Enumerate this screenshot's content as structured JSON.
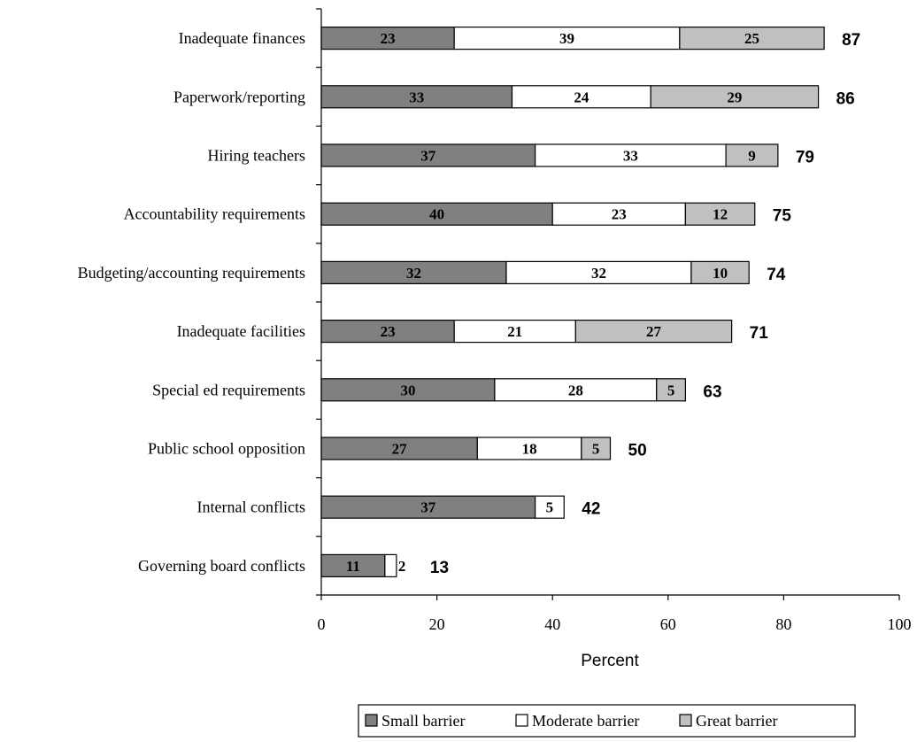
{
  "chart_data": {
    "type": "bar",
    "orientation": "horizontal",
    "stacked": true,
    "categories": [
      "Inadequate finances",
      "Paperwork/reporting",
      "Hiring teachers",
      "Accountability requirements",
      "Budgeting/accounting requirements",
      "Inadequate facilities",
      "Special ed requirements",
      "Public school opposition",
      "Internal conflicts",
      "Governing board conflicts"
    ],
    "series": [
      {
        "name": "Small barrier",
        "color": "#808080",
        "values": [
          23,
          33,
          37,
          40,
          32,
          23,
          30,
          27,
          37,
          11
        ]
      },
      {
        "name": "Moderate barrier",
        "color": "#ffffff",
        "values": [
          39,
          24,
          33,
          23,
          32,
          21,
          28,
          18,
          5,
          2
        ]
      },
      {
        "name": "Great barrier",
        "color": "#c0c0c0",
        "values": [
          25,
          29,
          9,
          12,
          10,
          27,
          5,
          5,
          0,
          0
        ]
      }
    ],
    "totals": [
      87,
      86,
      79,
      75,
      74,
      71,
      63,
      50,
      42,
      13
    ],
    "xlabel": "Percent",
    "ylabel": "",
    "title": "",
    "xlim": [
      0,
      100
    ],
    "xticks": [
      "0",
      "20",
      "40",
      "60",
      "80",
      "100"
    ],
    "grid": false,
    "legend_position": "bottom"
  }
}
